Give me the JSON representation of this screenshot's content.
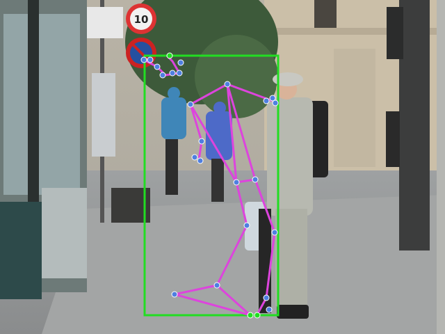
{
  "photo": {
    "sign_speed_text": "10",
    "description_hidden": ""
  },
  "annotation": {
    "bbox_color": "#22dd22",
    "skeleton_color": "#dd44dd",
    "keypoint_color": "#4f7fe0"
  }
}
